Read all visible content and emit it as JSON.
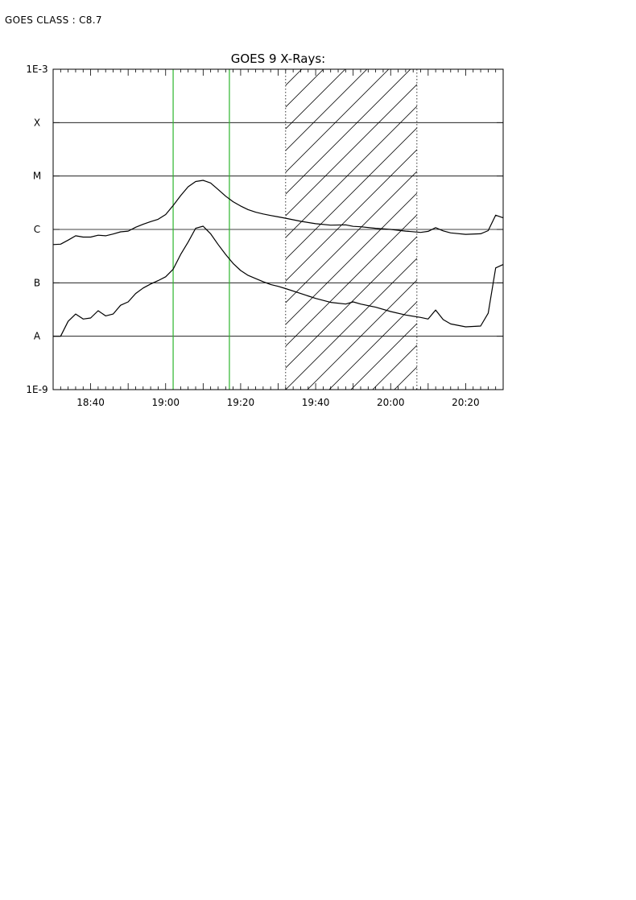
{
  "header": {
    "goes_class_label": "GOES CLASS : C8.7"
  },
  "chart_data": {
    "type": "line",
    "title": "GOES 9 X-Rays:",
    "xlabel": "",
    "ylabel": "",
    "y_scale": "log",
    "y_unit_note": "flux, log scale",
    "xlim": [
      "18:30",
      "20:30"
    ],
    "ylim": [
      1e-09,
      0.001
    ],
    "x_ticks": [
      "18:40",
      "19:00",
      "19:20",
      "19:40",
      "20:00",
      "20:20"
    ],
    "y_tick_labels": [
      {
        "value": 0.001,
        "label": "1E-3"
      },
      {
        "value": 0.0001,
        "label": "X"
      },
      {
        "value": 1e-05,
        "label": "M"
      },
      {
        "value": 1e-06,
        "label": "C"
      },
      {
        "value": 1e-07,
        "label": "B"
      },
      {
        "value": 1e-08,
        "label": "A"
      },
      {
        "value": 1e-09,
        "label": "1E-9"
      }
    ],
    "grid": "horizontal at class levels",
    "markers": [
      {
        "kind": "vertical-line",
        "x": "19:02",
        "color": "#2db52d"
      },
      {
        "kind": "vertical-line",
        "x": "19:17",
        "color": "#2db52d"
      }
    ],
    "shaded_intervals": [
      {
        "from": "19:32",
        "to": "20:07",
        "pattern": "diagonal hatch",
        "border": "dotted"
      }
    ],
    "series": [
      {
        "x": [
          "18:30",
          "18:32",
          "18:34",
          "18:36",
          "18:38",
          "18:40",
          "18:42",
          "18:44",
          "18:46",
          "18:48",
          "18:50",
          "18:52",
          "18:54",
          "18:56",
          "18:58",
          "19:00",
          "19:02",
          "19:04",
          "19:06",
          "19:08",
          "19:10",
          "19:12",
          "19:14",
          "19:16",
          "19:18",
          "19:20",
          "19:22",
          "19:24",
          "19:26",
          "19:28",
          "19:30",
          "19:32",
          "19:36",
          "19:40",
          "19:44",
          "19:48",
          "19:50",
          "19:52",
          "19:56",
          "20:00",
          "20:04",
          "20:08",
          "20:10",
          "20:12",
          "20:14",
          "20:16",
          "20:20",
          "20:24",
          "20:26",
          "20:28",
          "20:30"
        ],
        "values": [
          5.2e-07,
          5.3e-07,
          6.3e-07,
          7.6e-07,
          7.2e-07,
          7.2e-07,
          7.8e-07,
          7.6e-07,
          8.2e-07,
          9e-07,
          9.3e-07,
          1.1e-06,
          1.25e-06,
          1.4e-06,
          1.55e-06,
          1.9e-06,
          2.8e-06,
          4.3e-06,
          6.3e-06,
          7.9e-06,
          8.3e-06,
          7.4e-06,
          5.6e-06,
          4.2e-06,
          3.3e-06,
          2.75e-06,
          2.35e-06,
          2.1e-06,
          1.95e-06,
          1.82e-06,
          1.72e-06,
          1.62e-06,
          1.42e-06,
          1.28e-06,
          1.2e-06,
          1.22e-06,
          1.14e-06,
          1.12e-06,
          1.05e-06,
          1e-06,
          9.3e-07,
          8.8e-07,
          9.2e-07,
          1.08e-06,
          9.4e-07,
          8.6e-07,
          8.1e-07,
          8.3e-07,
          9.5e-07,
          1.85e-06,
          1.65e-06
        ]
      },
      {
        "x": [
          "18:30",
          "18:32",
          "18:34",
          "18:36",
          "18:38",
          "18:40",
          "18:42",
          "18:44",
          "18:46",
          "18:48",
          "18:50",
          "18:52",
          "18:54",
          "18:56",
          "18:58",
          "19:00",
          "19:02",
          "19:04",
          "19:06",
          "19:08",
          "19:10",
          "19:12",
          "19:14",
          "19:16",
          "19:18",
          "19:20",
          "19:22",
          "19:24",
          "19:26",
          "19:28",
          "19:30",
          "19:32",
          "19:36",
          "19:40",
          "19:44",
          "19:48",
          "19:50",
          "19:52",
          "19:56",
          "20:00",
          "20:04",
          "20:08",
          "20:10",
          "20:12",
          "20:14",
          "20:16",
          "20:20",
          "20:24",
          "20:26",
          "20:28",
          "20:30"
        ],
        "values": [
          1e-08,
          1e-08,
          1.9e-08,
          2.6e-08,
          2.1e-08,
          2.2e-08,
          3e-08,
          2.4e-08,
          2.6e-08,
          3.8e-08,
          4.4e-08,
          6.3e-08,
          8e-08,
          9.5e-08,
          1.1e-07,
          1.3e-07,
          1.8e-07,
          3.4e-07,
          5.8e-07,
          1.05e-06,
          1.15e-06,
          8.3e-07,
          5.2e-07,
          3.4e-07,
          2.3e-07,
          1.7e-07,
          1.38e-07,
          1.2e-07,
          1.05e-07,
          9.3e-08,
          8.6e-08,
          7.8e-08,
          6.3e-08,
          5.1e-08,
          4.3e-08,
          4e-08,
          4.4e-08,
          4e-08,
          3.5e-08,
          2.9e-08,
          2.5e-08,
          2.25e-08,
          2.1e-08,
          3.1e-08,
          2.05e-08,
          1.7e-08,
          1.5e-08,
          1.55e-08,
          2.7e-08,
          1.9e-07,
          2.2e-07
        ]
      }
    ]
  }
}
